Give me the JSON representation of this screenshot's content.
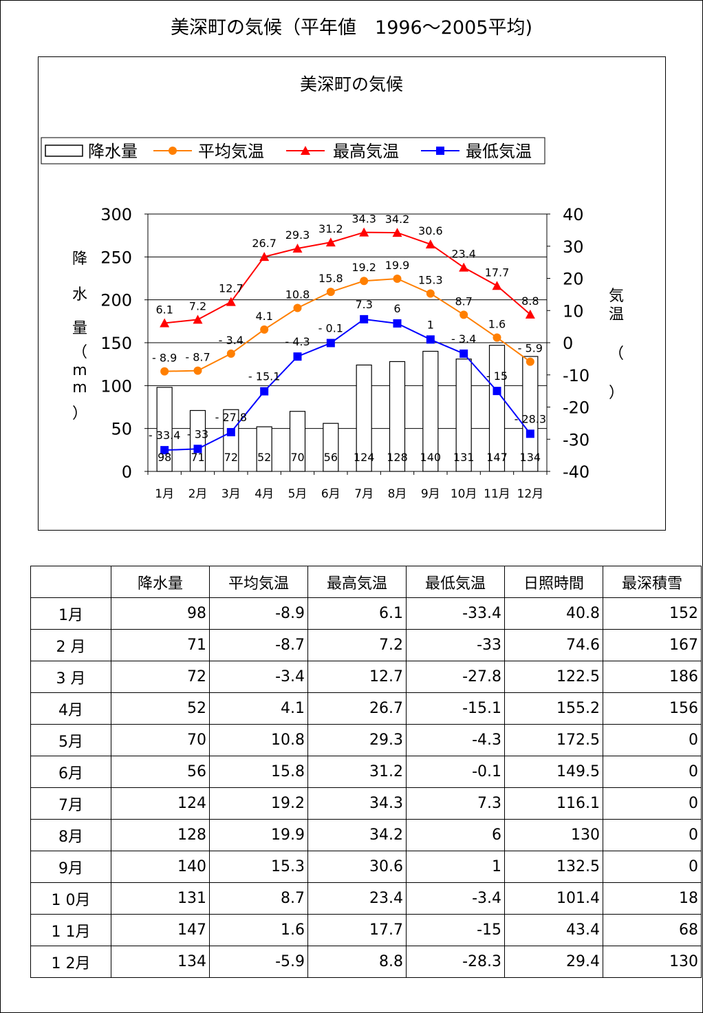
{
  "page": {
    "title": "美深町の気候（平年値　1996～2005平均)"
  },
  "chart_data": {
    "type": "bar+line",
    "title": "美深町の気候",
    "categories": [
      "1月",
      "2月",
      "3月",
      "4月",
      "5月",
      "6月",
      "7月",
      "8月",
      "9月",
      "10月",
      "11月",
      "12月"
    ],
    "series": [
      {
        "name": "降水量",
        "kind": "bar",
        "axis": "left",
        "color": "#ffffff",
        "values": [
          98,
          71,
          72,
          52,
          70,
          56,
          124,
          128,
          140,
          131,
          147,
          134
        ]
      },
      {
        "name": "平均気温",
        "kind": "line",
        "axis": "right",
        "color": "#ff7f00",
        "marker": "circle",
        "values": [
          -8.9,
          -8.7,
          -3.4,
          4.1,
          10.8,
          15.8,
          19.2,
          19.9,
          15.3,
          8.7,
          1.6,
          -5.9
        ]
      },
      {
        "name": "最高気温",
        "kind": "line",
        "axis": "right",
        "color": "#ff0000",
        "marker": "triangle",
        "values": [
          6.1,
          7.2,
          12.7,
          26.7,
          29.3,
          31.2,
          34.3,
          34.2,
          30.6,
          23.4,
          17.7,
          8.8
        ]
      },
      {
        "name": "最低気温",
        "kind": "line",
        "axis": "right",
        "color": "#0000ff",
        "marker": "square",
        "values": [
          -33.4,
          -33,
          -27.8,
          -15.1,
          -4.3,
          -0.1,
          7.3,
          6,
          1,
          -3.4,
          -15,
          -28.3
        ]
      }
    ],
    "y_left": {
      "label": "降水量（ｍｍ）",
      "label_chars": [
        "降",
        "水",
        "量",
        "（",
        "m",
        "m",
        "）"
      ],
      "range": [
        0,
        300
      ],
      "ticks": [
        "0",
        "50",
        "100",
        "150",
        "200",
        "250",
        "300"
      ]
    },
    "y_right": {
      "label": "気温（）",
      "label_chars": [
        "気",
        "温",
        "（",
        "）"
      ],
      "range": [
        -40,
        40
      ],
      "ticks": [
        "-40",
        "-30",
        "-20",
        "-10",
        "0",
        "10",
        "20",
        "30",
        "40"
      ]
    },
    "grid": true,
    "legend_position": "top"
  },
  "table": {
    "headers": [
      "",
      "降水量",
      "平均気温",
      "最高気温",
      "最低気温",
      "日照時間",
      "最深積雪"
    ],
    "rows": [
      [
        "1月",
        "98",
        "-8.9",
        "6.1",
        "-33.4",
        "40.8",
        "152"
      ],
      [
        "2 月",
        "71",
        "-8.7",
        "7.2",
        "-33",
        "74.6",
        "167"
      ],
      [
        "3 月",
        "72",
        "-3.4",
        "12.7",
        "-27.8",
        "122.5",
        "186"
      ],
      [
        "4月",
        "52",
        "4.1",
        "26.7",
        "-15.1",
        "155.2",
        "156"
      ],
      [
        "5月",
        "70",
        "10.8",
        "29.3",
        "-4.3",
        "172.5",
        "0"
      ],
      [
        "6月",
        "56",
        "15.8",
        "31.2",
        "-0.1",
        "149.5",
        "0"
      ],
      [
        "7月",
        "124",
        "19.2",
        "34.3",
        "7.3",
        "116.1",
        "0"
      ],
      [
        "8月",
        "128",
        "19.9",
        "34.2",
        "6",
        "130",
        "0"
      ],
      [
        "9月",
        "140",
        "15.3",
        "30.6",
        "1",
        "132.5",
        "0"
      ],
      [
        "1 0月",
        "131",
        "8.7",
        "23.4",
        "-3.4",
        "101.4",
        "18"
      ],
      [
        "1 1月",
        "147",
        "1.6",
        "17.7",
        "-15",
        "43.4",
        "68"
      ],
      [
        "1 2月",
        "134",
        "-5.9",
        "8.8",
        "-28.3",
        "29.4",
        "130"
      ]
    ]
  }
}
